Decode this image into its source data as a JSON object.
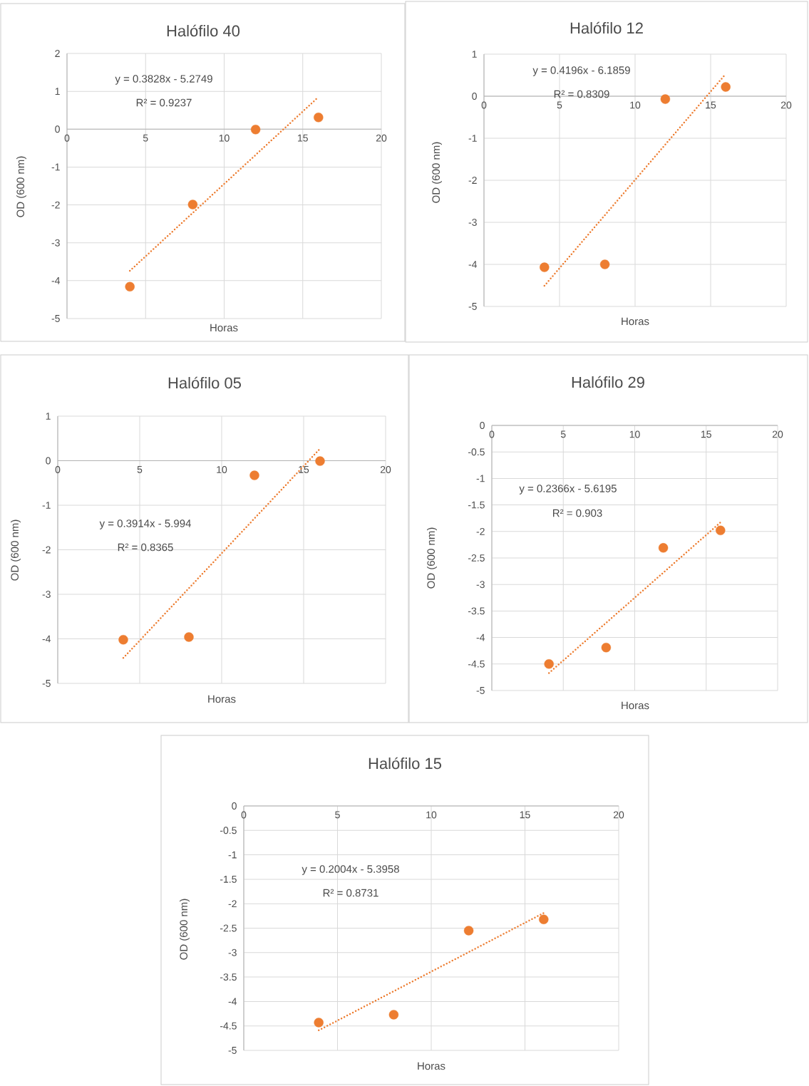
{
  "chart_data": [
    {
      "type": "scatter",
      "title": "Halófilo 40",
      "xlabel": "Horas",
      "ylabel": "OD (600 nm)",
      "xlim": [
        0,
        20
      ],
      "ylim": [
        -5,
        2
      ],
      "xticks": [
        0,
        5,
        10,
        15,
        20
      ],
      "yticks": [
        -5,
        -4,
        -3,
        -2,
        -1,
        0,
        1,
        2
      ],
      "grid": true,
      "annotations": [
        "y = 0.3828x - 5.2749",
        "R² = 0.9237"
      ],
      "series": [
        {
          "color": "#ed7d31",
          "marker": "circle",
          "x": [
            4,
            8,
            12,
            16
          ],
          "values": [
            -4.16,
            -1.99,
            -0.01,
            0.31
          ]
        },
        {
          "type": "line",
          "color": "#ed7d31",
          "marker": "none",
          "line_style": "dotted",
          "x": [
            4,
            16
          ],
          "values": [
            -3.74,
            0.85
          ]
        }
      ]
    },
    {
      "type": "scatter",
      "title": "Halófilo 12",
      "xlabel": "Horas",
      "ylabel": "OD (600 nm)",
      "xlim": [
        0,
        20
      ],
      "ylim": [
        -5,
        1
      ],
      "xticks": [
        0,
        5,
        10,
        15,
        20
      ],
      "yticks": [
        -5,
        -4,
        -3,
        -2,
        -1,
        0,
        1
      ],
      "grid": true,
      "annotations": [
        "y = 0.4196x - 6.1859",
        "R² = 0.8309"
      ],
      "series": [
        {
          "color": "#ed7d31",
          "marker": "circle",
          "x": [
            4,
            8,
            12,
            16
          ],
          "values": [
            -4.07,
            -4.0,
            -0.07,
            0.22
          ]
        },
        {
          "type": "line",
          "color": "#ed7d31",
          "marker": "none",
          "line_style": "dotted",
          "x": [
            4,
            16
          ],
          "values": [
            -4.51,
            0.53
          ]
        }
      ]
    },
    {
      "type": "scatter",
      "title": "Halófilo 05",
      "xlabel": "Horas",
      "ylabel": "OD (600 nm)",
      "xlim": [
        0,
        20
      ],
      "ylim": [
        -5,
        1
      ],
      "xticks": [
        0,
        5,
        10,
        15,
        20
      ],
      "yticks": [
        -5,
        -4,
        -3,
        -2,
        -1,
        0,
        1
      ],
      "grid": true,
      "annotations": [
        "y = 0.3914x - 5.994",
        "R² = 0.8365"
      ],
      "series": [
        {
          "color": "#ed7d31",
          "marker": "circle",
          "x": [
            4,
            8,
            12,
            16
          ],
          "values": [
            -4.02,
            -3.96,
            -0.33,
            -0.01
          ]
        },
        {
          "type": "line",
          "color": "#ed7d31",
          "marker": "none",
          "line_style": "dotted",
          "x": [
            4,
            16
          ],
          "values": [
            -4.43,
            0.27
          ]
        }
      ]
    },
    {
      "type": "scatter",
      "title": "Halófilo 29",
      "xlabel": "Horas",
      "ylabel": "OD (600 nm)",
      "xlim": [
        0,
        20
      ],
      "ylim": [
        -5,
        0
      ],
      "xticks": [
        0,
        5,
        10,
        15,
        20
      ],
      "yticks": [
        -5,
        -4.5,
        -4,
        -3.5,
        -3,
        -2.5,
        -2,
        -1.5,
        -1,
        -0.5,
        0
      ],
      "grid": true,
      "annotations": [
        "y = 0.2366x - 5.6195",
        "R² = 0.903"
      ],
      "series": [
        {
          "color": "#ed7d31",
          "marker": "circle",
          "x": [
            4,
            8,
            12,
            16
          ],
          "values": [
            -4.5,
            -4.19,
            -2.31,
            -1.98
          ]
        },
        {
          "type": "line",
          "color": "#ed7d31",
          "marker": "none",
          "line_style": "dotted",
          "x": [
            4,
            16
          ],
          "values": [
            -4.67,
            -1.83
          ]
        }
      ]
    },
    {
      "type": "scatter",
      "title": "Halófilo 15",
      "xlabel": "Horas",
      "ylabel": "OD (600 nm)",
      "xlim": [
        0,
        20
      ],
      "ylim": [
        -5,
        0
      ],
      "xticks": [
        0,
        5,
        10,
        15,
        20
      ],
      "yticks": [
        -5,
        -4.5,
        -4,
        -3.5,
        -3,
        -2.5,
        -2,
        -1.5,
        -1,
        -0.5,
        0
      ],
      "grid": true,
      "annotations": [
        "y = 0.2004x - 5.3958",
        "R² = 0.8731"
      ],
      "series": [
        {
          "color": "#ed7d31",
          "marker": "circle",
          "x": [
            4,
            8,
            12,
            16
          ],
          "values": [
            -4.43,
            -4.27,
            -2.55,
            -2.32
          ]
        },
        {
          "type": "line",
          "color": "#ed7d31",
          "marker": "none",
          "line_style": "dotted",
          "x": [
            4,
            16
          ],
          "values": [
            -4.59,
            -2.19
          ]
        }
      ]
    }
  ]
}
